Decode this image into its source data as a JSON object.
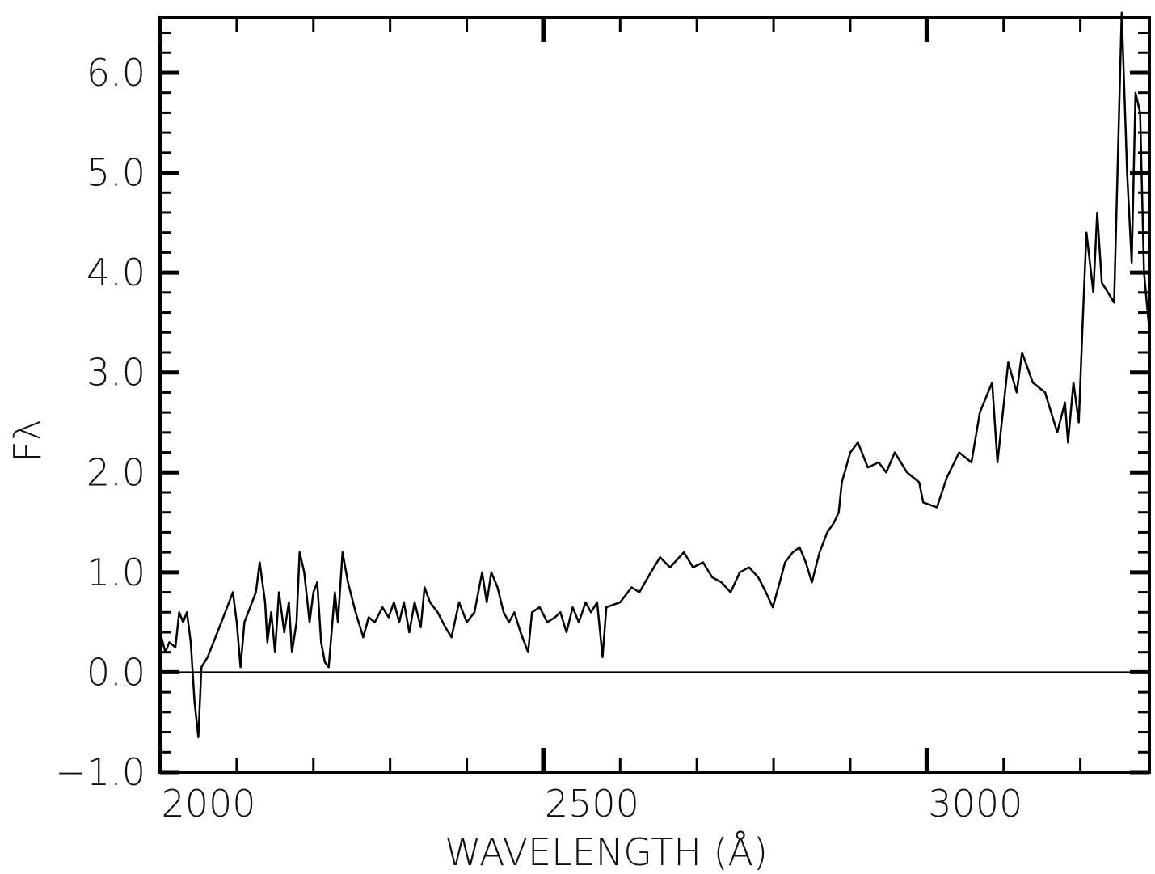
{
  "chart_data": {
    "type": "line",
    "x_label": "WAVELENGTH (Å)",
    "y_label": "Fλ",
    "x": [
      2000,
      2007,
      2012,
      2020,
      2025,
      2030,
      2035,
      2040,
      2045,
      2050,
      2054,
      2062,
      2080,
      2095,
      2100,
      2105,
      2110,
      2125,
      2130,
      2137,
      2140,
      2145,
      2150,
      2155,
      2162,
      2168,
      2172,
      2178,
      2182,
      2188,
      2195,
      2200,
      2205,
      2210,
      2215,
      2220,
      2228,
      2232,
      2238,
      2245,
      2255,
      2265,
      2272,
      2280,
      2290,
      2298,
      2305,
      2312,
      2318,
      2325,
      2332,
      2340,
      2345,
      2352,
      2362,
      2372,
      2380,
      2390,
      2400,
      2410,
      2420,
      2426,
      2432,
      2440,
      2448,
      2455,
      2462,
      2470,
      2480,
      2485,
      2495,
      2505,
      2515,
      2522,
      2530,
      2538,
      2546,
      2555,
      2562,
      2570,
      2577,
      2582,
      2600,
      2615,
      2625,
      2640,
      2652,
      2665,
      2683,
      2695,
      2708,
      2720,
      2732,
      2744,
      2756,
      2768,
      2780,
      2790,
      2799,
      2808,
      2815,
      2825,
      2834,
      2842,
      2850,
      2860,
      2870,
      2879,
      2885,
      2889,
      2900,
      2910,
      2923,
      2937,
      2947,
      2958,
      2974,
      2990,
      2995,
      3013,
      3026,
      3042,
      3058,
      3069,
      3085,
      3092,
      3106,
      3117,
      3124,
      3138,
      3154,
      3162,
      3170,
      3180,
      3184,
      3191,
      3198,
      3203,
      3208,
      3217,
      3222,
      3228,
      3236,
      3244,
      3254,
      3261,
      3267,
      3272,
      3278,
      3283,
      3289
    ],
    "values": [
      0.4,
      0.2,
      0.3,
      0.25,
      0.6,
      0.5,
      0.6,
      0.3,
      -0.3,
      -0.65,
      0.05,
      0.15,
      0.5,
      0.8,
      0.5,
      0.05,
      0.5,
      0.8,
      1.1,
      0.7,
      0.3,
      0.6,
      0.2,
      0.8,
      0.4,
      0.7,
      0.2,
      0.5,
      1.2,
      1.0,
      0.5,
      0.8,
      0.9,
      0.3,
      0.1,
      0.05,
      0.8,
      0.5,
      1.2,
      0.9,
      0.6,
      0.35,
      0.55,
      0.5,
      0.65,
      0.55,
      0.7,
      0.5,
      0.7,
      0.4,
      0.7,
      0.45,
      0.85,
      0.7,
      0.6,
      0.45,
      0.35,
      0.7,
      0.5,
      0.6,
      1.0,
      0.7,
      1.0,
      0.85,
      0.6,
      0.5,
      0.6,
      0.4,
      0.2,
      0.6,
      0.65,
      0.5,
      0.55,
      0.6,
      0.4,
      0.65,
      0.5,
      0.7,
      0.6,
      0.7,
      0.15,
      0.65,
      0.7,
      0.85,
      0.8,
      1.0,
      1.15,
      1.05,
      1.2,
      1.05,
      1.1,
      0.95,
      0.9,
      0.8,
      1.0,
      1.05,
      0.95,
      0.8,
      0.65,
      0.9,
      1.1,
      1.2,
      1.25,
      1.1,
      0.9,
      1.2,
      1.4,
      1.5,
      1.6,
      1.9,
      2.2,
      2.3,
      2.05,
      2.1,
      2.0,
      2.2,
      2.0,
      1.9,
      1.7,
      1.65,
      1.95,
      2.2,
      2.1,
      2.6,
      2.9,
      2.1,
      3.1,
      2.8,
      3.2,
      2.9,
      2.8,
      2.6,
      2.4,
      2.7,
      2.3,
      2.9,
      2.5,
      3.5,
      4.4,
      3.8,
      4.6,
      3.9,
      3.8,
      3.7,
      6.6,
      5.0,
      4.1,
      5.8,
      5.6,
      4.0,
      3.5
    ],
    "color": "#000000",
    "xlim": [
      2000,
      3290
    ],
    "ylim": [
      -1,
      6.55
    ],
    "xticks": [
      2000,
      2500,
      3000
    ],
    "xticks_minor": [
      2100,
      2200,
      2300,
      2400,
      2600,
      2700,
      2800,
      2900,
      3100,
      3200
    ],
    "yticks": [
      {
        "value": -1,
        "label": "−1.0"
      },
      {
        "value": 0,
        "label": "0.0"
      },
      {
        "value": 1,
        "label": "1.0"
      },
      {
        "value": 2,
        "label": "2.0"
      },
      {
        "value": 3,
        "label": "3.0"
      },
      {
        "value": 4,
        "label": "4.0"
      },
      {
        "value": 5,
        "label": "5.0"
      },
      {
        "value": 6,
        "label": "6.0"
      }
    ],
    "yticks_minor": [
      -0.8,
      -0.6,
      -0.4,
      -0.2,
      0.2,
      0.4,
      0.6,
      0.8,
      1.2,
      1.4,
      1.6,
      1.8,
      2.2,
      2.4,
      2.6,
      2.8,
      3.2,
      3.4,
      3.6,
      3.8,
      4.2,
      4.4,
      4.6,
      4.8,
      5.2,
      5.4,
      5.6,
      5.8,
      6.2,
      6.4
    ]
  }
}
